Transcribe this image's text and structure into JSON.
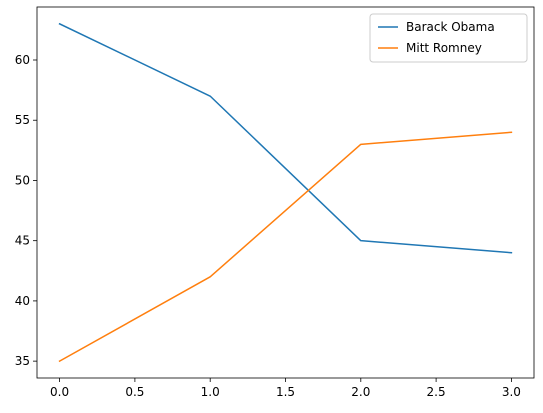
{
  "chart_data": {
    "type": "line",
    "title": "",
    "xlabel": "",
    "ylabel": "",
    "x": [
      0,
      1,
      2,
      3
    ],
    "series": [
      {
        "name": "Barack Obama",
        "values": [
          63,
          57,
          45,
          44
        ],
        "color": "#1f77b4"
      },
      {
        "name": "Mitt Romney",
        "values": [
          35,
          42,
          53,
          54
        ],
        "color": "#ff7f0e"
      }
    ],
    "xlim": [
      -0.15,
      3.15
    ],
    "ylim": [
      33.6,
      64.4
    ],
    "xticks": [
      0.0,
      0.5,
      1.0,
      1.5,
      2.0,
      2.5,
      3.0
    ],
    "xtick_labels": [
      "0.0",
      "0.5",
      "1.0",
      "1.5",
      "2.0",
      "2.5",
      "3.0"
    ],
    "yticks": [
      35,
      40,
      45,
      50,
      55,
      60
    ],
    "ytick_labels": [
      "35",
      "40",
      "45",
      "50",
      "55",
      "60"
    ],
    "grid": false,
    "legend_position": "top-right"
  }
}
